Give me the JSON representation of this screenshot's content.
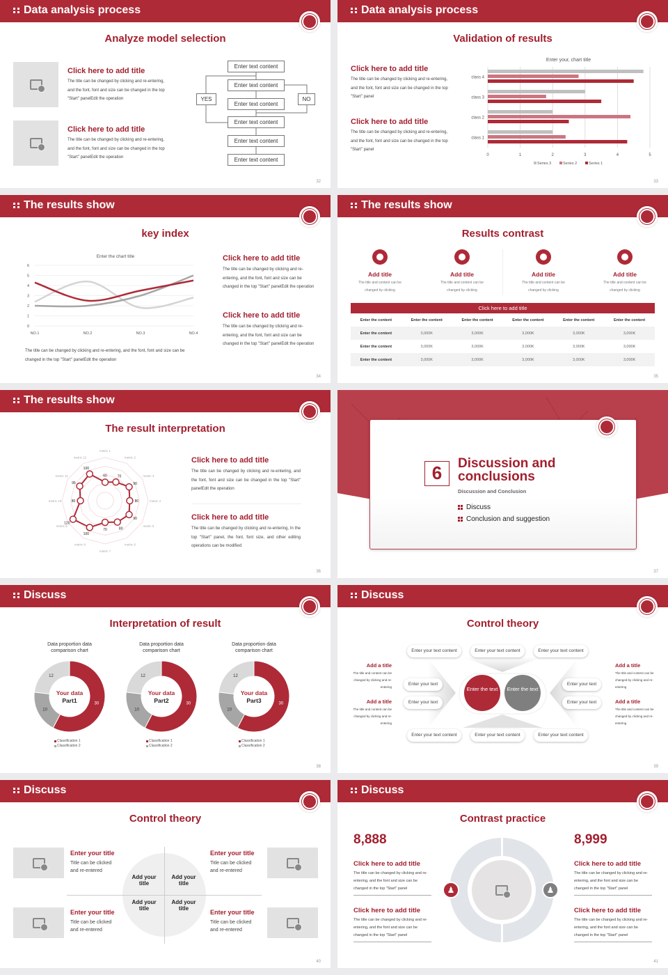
{
  "colors": {
    "brand": "#ae2a37",
    "series_2": "#cc7580",
    "gray": "#bfbfbf",
    "dark_gray": "#7f7f7f"
  },
  "header_icon": "grip-dots-icon",
  "slides": [
    {
      "header": "Data analysis process",
      "title": "Analyze model selection",
      "page": "32",
      "items": [
        {
          "title": "Click here to add title",
          "body": "The title can be changed by clicking and re-entering, and the font, font and size can be changed in the top \"Start\" panelEdit the operation"
        },
        {
          "title": "Click here to add title",
          "body": "The title can be changed by clicking and re-entering, and the font, font and size can be changed in the top \"Start\" panelEdit the operation"
        }
      ],
      "flow": {
        "boxes": [
          "Enter text content",
          "Enter text content",
          "Enter text content",
          "Enter text content",
          "Enter text content",
          "Enter text content"
        ],
        "yes": "YES",
        "no": "NO"
      }
    },
    {
      "header": "Data analysis process",
      "title": "Validation of results",
      "page": "33",
      "items": [
        {
          "title": "Click here to add title",
          "body": "The title can be changed by clicking and re-entering, and the font, font and size can be changed in the top \"Start\" panel"
        },
        {
          "title": "Click here to add title",
          "body": "The title can be changed by clicking and re-entering, and the font, font and size can be changed in the top \"Start\" panel"
        }
      ]
    },
    {
      "header": "The results show",
      "title": "key index",
      "page": "34",
      "caption": "The title can be changed by clicking and re-entering, and the font, font and size can be changed in the top \"Start\" panelEdit the operation",
      "items": [
        {
          "title": "Click here to add title",
          "body": "The title can be changed by clicking and re-entering, and the font, font and size can be changed in the top \"Start\" panelEdit the operation"
        },
        {
          "title": "Click here to add title",
          "body": "The title can be changed by clicking and re-entering, and the font, font and size can be changed in the top \"Start\" panelEdit the operation"
        }
      ]
    },
    {
      "header": "The results show",
      "title": "Results contrast",
      "page": "35",
      "cards": [
        {
          "title": "Add title",
          "body": "The title and content can be changed by clicking"
        },
        {
          "title": "Add title",
          "body": "The title and content can be changed by clicking"
        },
        {
          "title": "Add title",
          "body": "The title and content can be changed by clicking"
        },
        {
          "title": "Add title",
          "body": "The title and content can be changed by clicking"
        }
      ],
      "table": {
        "caption": "Click here to add title",
        "header": [
          "Enter the content",
          "Enter the content",
          "Enter the content",
          "Enter the content",
          "Enter the content",
          "Enter the content"
        ],
        "rows": [
          [
            "Enter the content",
            "3,000K",
            "3,000K",
            "3,000K",
            "3,000K",
            "3,000K"
          ],
          [
            "Enter the content",
            "3,000K",
            "3,000K",
            "3,000K",
            "3,000K",
            "3,000K"
          ],
          [
            "Enter the content",
            "3,000K",
            "3,000K",
            "3,000K",
            "3,000K",
            "3,000K"
          ]
        ]
      }
    },
    {
      "header": "The results show",
      "title": "The result interpretation",
      "page": "36",
      "items": [
        {
          "title": "Click here to add title",
          "body": "The title can be changed by clicking and re-entering, and the font, font and size can be changed in the top \"Start\" panelEdit the operation"
        },
        {
          "title": "Click here to add title",
          "body": "The title can be changed by clicking and re-entering, In the top \"Start\" panel, the font, font size, and other editing operations can be modified"
        }
      ]
    },
    {
      "number": "6",
      "title": "Discussion and conclusions",
      "subtitle": "Discussion and Conclusion",
      "bullets": [
        "Discuss",
        "Conclusion and suggestion"
      ],
      "page": "37"
    },
    {
      "header": "Discuss",
      "title": "Interpretation of result",
      "page": "38"
    },
    {
      "header": "Discuss",
      "title": "Control theory",
      "page": "39",
      "top_pills": [
        "Enter your text content",
        "Enter your text content",
        "Enter your text content"
      ],
      "bottom_pills": [
        "Enter your text content",
        "Enter your text content",
        "Enter your text content"
      ],
      "side_pills": [
        "Enter your text",
        "Enter your text",
        "Enter your text",
        "Enter your text"
      ],
      "center": [
        "Enter the text",
        "Enter the text"
      ],
      "notes": [
        {
          "title": "Add a title",
          "body": "The title and content can be changed by clicking and re-entering"
        },
        {
          "title": "Add a title",
          "body": "The title and content can be changed by clicking and re-entering"
        },
        {
          "title": "Add a title",
          "body": "The title and content can be changed by clicking and re-entering"
        },
        {
          "title": "Add a title",
          "body": "The title and content can be changed by clicking and re-entering"
        }
      ]
    },
    {
      "header": "Discuss",
      "title": "Control theory",
      "page": "40",
      "items": [
        {
          "title": "Enter your title",
          "body": "Title can be clicked and re-entered"
        },
        {
          "title": "Enter your title",
          "body": "Title can be clicked and re-entered"
        },
        {
          "title": "Enter your title",
          "body": "Title can be clicked and re-entered"
        },
        {
          "title": "Enter your title",
          "body": "Title can be clicked and re-entered"
        }
      ],
      "quadrants": [
        "Add your title",
        "Add your title",
        "Add your title",
        "Add your title"
      ]
    },
    {
      "header": "Discuss",
      "title": "Contrast practice",
      "page": "41",
      "numbers": [
        "8,888",
        "8,999"
      ],
      "icons": [
        "male-icon",
        "female-icon"
      ],
      "items": [
        {
          "title": "Click here to add title",
          "body": "The title can be changed by clicking and re-entering, and the font and size can be changed in the top \"Start\" panel"
        },
        {
          "title": "Click here to add title",
          "body": "The title can be changed by clicking and re-entering, and the font and size can be changed in the top \"Start\" panel"
        },
        {
          "title": "Click here to add title",
          "body": "The title can be changed by clicking and re-entering, and the font and size can be changed in the top \"Start\" panel"
        },
        {
          "title": "Click here to add title",
          "body": "The title can be changed by clicking and re-entering, and the font and size can be changed in the top \"Start\" panel"
        }
      ]
    }
  ],
  "chart_data": [
    {
      "type": "bar",
      "orientation": "horizontal",
      "title": "Enter your, chart title",
      "categories": [
        "class 1",
        "class 2",
        "class 3",
        "class 4"
      ],
      "series": [
        {
          "name": "Series 1",
          "values": [
            4.3,
            2.5,
            3.5,
            4.5
          ],
          "color": "#ae2a37"
        },
        {
          "name": "Series 2",
          "values": [
            2.4,
            4.4,
            1.8,
            2.8
          ],
          "color": "#cc7580"
        },
        {
          "name": "Series 3",
          "values": [
            2,
            2,
            3,
            4.8
          ],
          "color": "#c0c0c0"
        }
      ],
      "xlim": [
        0,
        5
      ],
      "xticks": [
        "0",
        "1",
        "2",
        "3",
        "4",
        "5"
      ],
      "grid": true,
      "legend": "bottom"
    },
    {
      "type": "line",
      "title": "Enter the chart title",
      "categories": [
        "NO.1",
        "NO.2",
        "NO.3",
        "NO.4"
      ],
      "series": [
        {
          "values": [
            4.3,
            2.5,
            3.5,
            4.5
          ],
          "color": "#ae2a37"
        },
        {
          "values": [
            2.4,
            4.4,
            1.8,
            2.8
          ],
          "color": "#d4d4d4"
        },
        {
          "values": [
            2,
            2,
            3,
            5
          ],
          "color": "#a6a6a6"
        }
      ],
      "ylim": [
        0,
        6
      ],
      "yticks": [
        "0",
        "1",
        "2",
        "3",
        "4",
        "5",
        "6"
      ],
      "smooth": true,
      "grid": true
    },
    {
      "type": "radar",
      "labels": [
        "metric 1",
        "metric 2",
        "metric 3",
        "metric 4",
        "metric 5",
        "metric 6",
        "metric 7",
        "metric 8",
        "metric 9",
        "metric 10",
        "metric 11",
        "metric 12"
      ],
      "values": [
        60,
        70,
        90,
        80,
        90,
        80,
        70,
        100,
        120,
        80,
        95,
        100
      ],
      "rlim": [
        0,
        140
      ],
      "color": "#ae2a37"
    },
    {
      "type": "pie",
      "donut": true,
      "title": "Data proportion data comparison chart",
      "center_title": "Your data",
      "center_label": "Part1",
      "values": [
        30,
        10,
        12
      ],
      "colors": [
        "#ae2a37",
        "#a6a6a6",
        "#d9d9d9"
      ],
      "legend": [
        "Classification 1",
        "Classification 2"
      ]
    },
    {
      "type": "pie",
      "donut": true,
      "title": "Data proportion data comparison chart",
      "center_title": "Your data",
      "center_label": "Part2",
      "values": [
        30,
        10,
        12
      ],
      "colors": [
        "#ae2a37",
        "#a6a6a6",
        "#d9d9d9"
      ],
      "legend": [
        "Classification 1",
        "Classification 2"
      ]
    },
    {
      "type": "pie",
      "donut": true,
      "title": "Data proportion data comparison chart",
      "center_title": "Your data",
      "center_label": "Part3",
      "values": [
        30,
        10,
        12
      ],
      "colors": [
        "#ae2a37",
        "#a6a6a6",
        "#d9d9d9"
      ],
      "legend": [
        "Classification 1",
        "Classification 2"
      ]
    }
  ]
}
